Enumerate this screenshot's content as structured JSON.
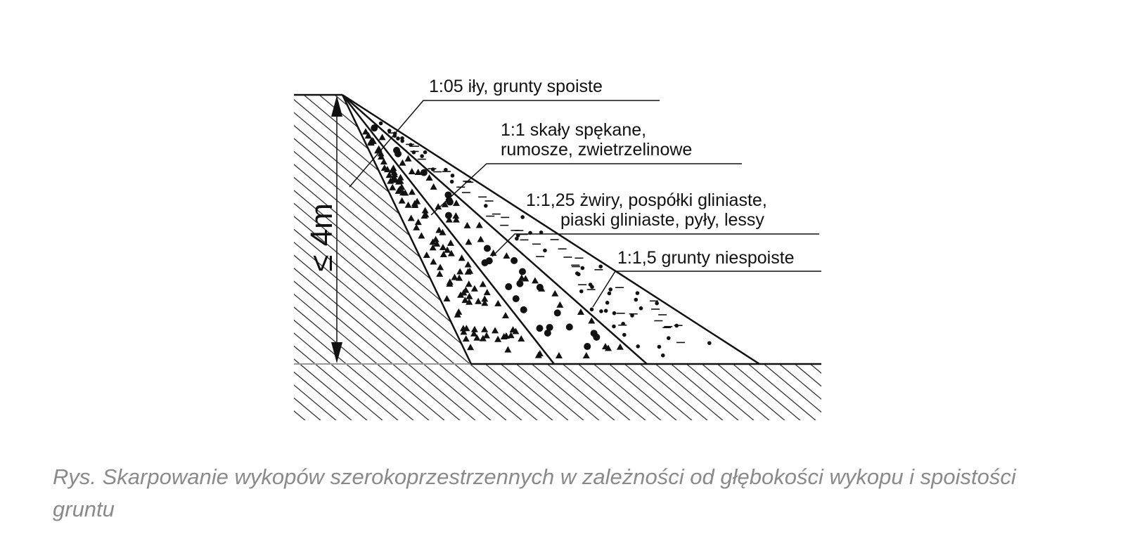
{
  "figure": {
    "labels": [
      {
        "lines": [
          "1:05 iły, grunty spoiste"
        ]
      },
      {
        "lines": [
          "1:1 skały spękane,",
          "rumosze, zwietrzelinowe"
        ]
      },
      {
        "lines": [
          "1:1,25 żwiry, pospółki gliniaste,",
          "piaski gliniaste, pyły, lessy"
        ]
      },
      {
        "lines": [
          "1:1,5 grunty niespoiste"
        ]
      }
    ],
    "depth_label": "≤ 4m"
  },
  "caption": "Rys. Skarpowanie wykopów szerokoprzestrzennych w zależności od głębokości wykopu i spoistości gruntu"
}
